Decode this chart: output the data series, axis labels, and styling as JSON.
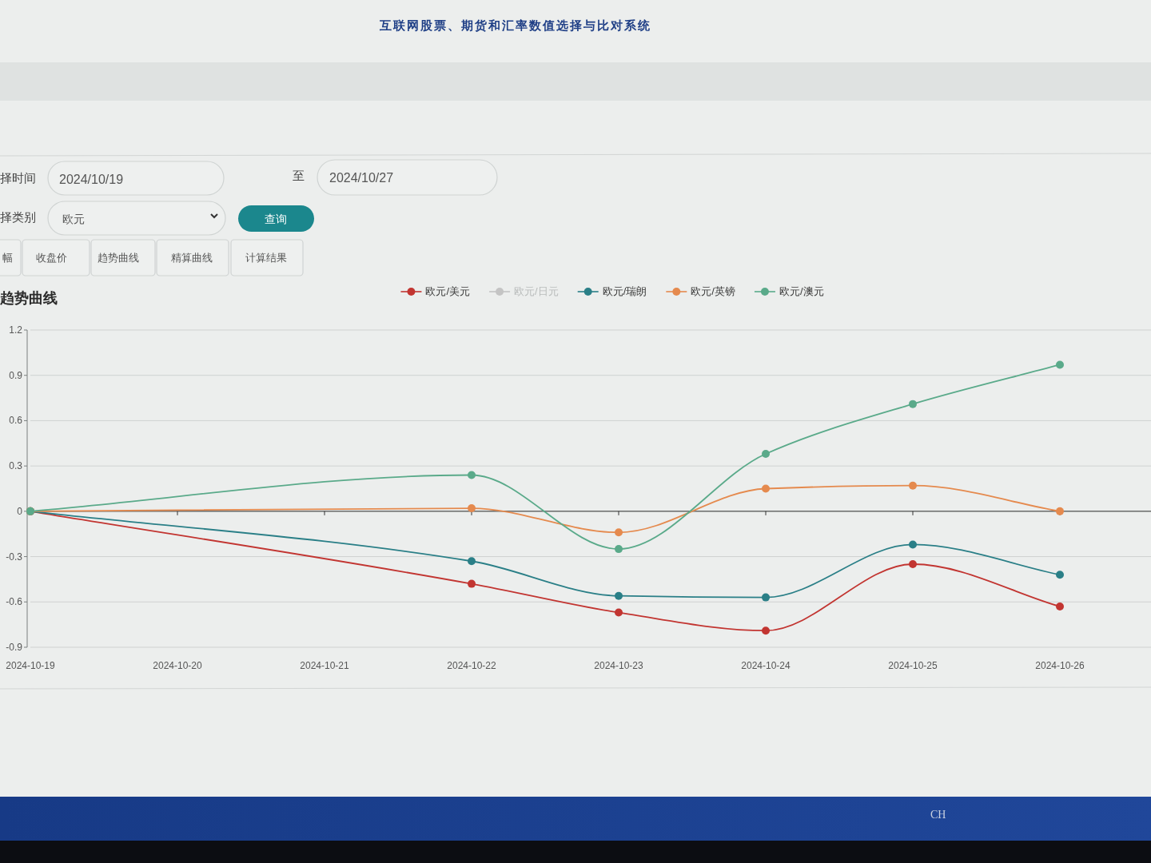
{
  "chart_data": {
    "type": "line",
    "title": "趋势曲线",
    "categories": [
      "2024-10-19",
      "2024-10-20",
      "2024-10-21",
      "2024-10-22",
      "2024-10-23",
      "2024-10-24",
      "2024-10-25",
      "2024-10-26"
    ],
    "series": [
      {
        "name": "欧元/美元",
        "color": "#c23531",
        "values": [
          0,
          null,
          null,
          -0.48,
          -0.67,
          -0.79,
          -0.35,
          -0.63
        ]
      },
      {
        "name": "欧元/日元",
        "color": "#c4c4c4",
        "values": [
          null,
          null,
          null,
          null,
          null,
          null,
          null,
          null
        ]
      },
      {
        "name": "欧元/瑞朗",
        "color": "#2a7f87",
        "values": [
          0,
          null,
          null,
          -0.33,
          -0.56,
          -0.57,
          -0.22,
          -0.42
        ]
      },
      {
        "name": "欧元/英镑",
        "color": "#e58a4e",
        "values": [
          0,
          null,
          null,
          0.02,
          -0.14,
          0.15,
          0.17,
          0
        ]
      },
      {
        "name": "欧元/澳元",
        "color": "#5aaa8a",
        "values": [
          0,
          null,
          null,
          0.24,
          -0.25,
          0.38,
          0.71,
          0.97
        ]
      }
    ],
    "ylim": [
      -0.9,
      1.2
    ],
    "yticks": [
      -0.9,
      -0.6,
      -0.3,
      0,
      0.3,
      0.6,
      0.9,
      1.2
    ],
    "grid": "y",
    "legend": "top",
    "marker": "circle",
    "line_style": "solid",
    "annotations": [
      "互联网股票、期货和汇率数值选择与比对系统",
      "择时间",
      "2024/10/19",
      "至",
      "2024/10/27",
      "择类别",
      "欧元",
      "查询",
      "幅",
      "收盘价",
      "趋势曲线",
      "精算曲线",
      "计算结果",
      "CH"
    ]
  }
}
